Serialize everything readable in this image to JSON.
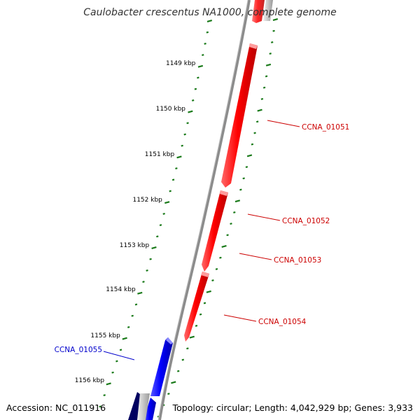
{
  "title": "Caulobacter crescentus NA1000, complete genome",
  "accession_text": "Accession: NC_011916",
  "summary_text": "Topology: circular; Length: 4,042,929 bp; Genes: 3,933",
  "ticks": [
    "1149 kbp",
    "1150 kbp",
    "1151 kbp",
    "1152 kbp",
    "1153 kbp",
    "1154 kbp",
    "1155 kbp",
    "1156 kbp"
  ],
  "genes": [
    {
      "name": "CCNA_01051",
      "strand": "forward",
      "color": "#e00000"
    },
    {
      "name": "CCNA_01052",
      "strand": "forward",
      "color": "#e00000"
    },
    {
      "name": "CCNA_01053",
      "strand": "forward",
      "color": "#e00000"
    },
    {
      "name": "CCNA_01054",
      "strand": "forward",
      "color": "#e00000"
    },
    {
      "name": "CCNA_01055",
      "strand": "reverse",
      "color": "#0000ee"
    }
  ],
  "colors": {
    "backbone": "#8c8c8c",
    "tick": "#1a7a1a",
    "forward_gene": "#ff0000",
    "reverse_gene": "#0000ff",
    "forward_label": "#cc0000",
    "reverse_label": "#0000cc"
  }
}
